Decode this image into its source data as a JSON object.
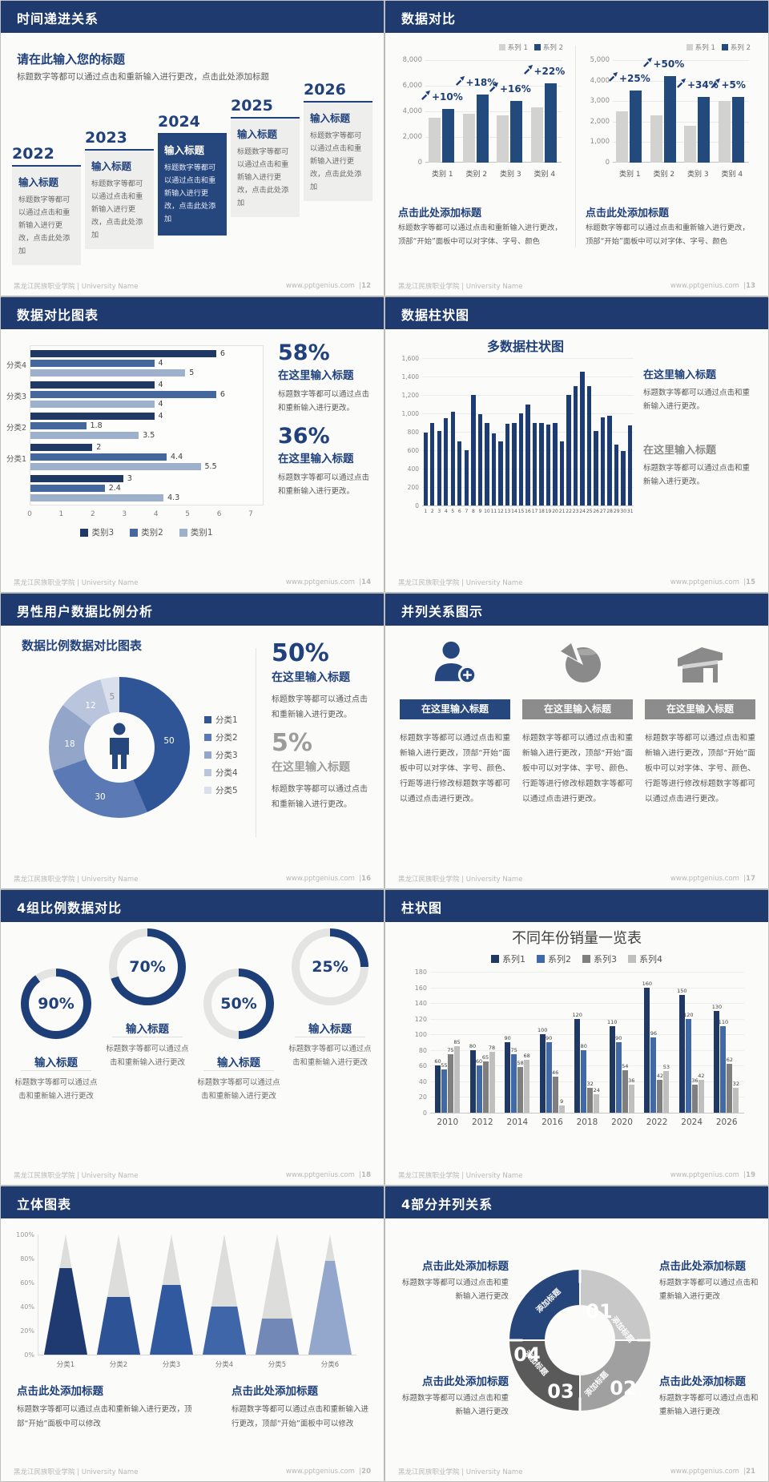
{
  "page": {
    "footer_left": "黑龙江民族职业学院 | University Name",
    "footer_site": "www.pptgenius.com",
    "footer_sep": "|",
    "colors": {
      "header": "#1e3a6e",
      "accent": "#20417c",
      "card_navy": "#26477e",
      "navy_bar": "#234a7d",
      "gray_bar": "#d2d2d0",
      "text_gray": "#595959",
      "muted": "#9c9c9c",
      "ring": "#1e3e78",
      "ring_track": "#e4e4e2"
    }
  },
  "slides": [
    {
      "title": "时间递进关系",
      "page_no": "12",
      "heading": "请在此输入您的标题",
      "subtext": "标题数字等都可以通过点击和重新输入进行更改，点击此处添加标题",
      "items": [
        {
          "year": "2022",
          "card_title": "输入标题",
          "card_text": "标题数字等都可以通过点击和重新输入进行更改，点击此处添加",
          "highlight": false
        },
        {
          "year": "2023",
          "card_title": "输入标题",
          "card_text": "标题数字等都可以通过点击和重新输入进行更改，点击此处添加",
          "highlight": false
        },
        {
          "year": "2024",
          "card_title": "输入标题",
          "card_text": "标题数字等都可以通过点击和重新输入进行更改，点击此处添加",
          "highlight": true
        },
        {
          "year": "2025",
          "card_title": "输入标题",
          "card_text": "标题数字等都可以通过点击和重新输入进行更改，点击此处添加",
          "highlight": false
        },
        {
          "year": "2026",
          "card_title": "输入标题",
          "card_text": "标题数字等都可以通过点击和重新输入进行更改，点击此处添加",
          "highlight": false
        }
      ]
    },
    {
      "title": "数据对比",
      "page_no": "13",
      "captions": [
        {
          "title": "点击此处添加标题",
          "text": "标题数字等都可以通过点击和重新输入进行更改，顶部“开始”面板中可以对字体、字号、颜色"
        },
        {
          "title": "点击此处添加标题",
          "text": "标题数字等都可以通过点击和重新输入进行更改，顶部“开始”面板中可以对字体、字号、颜色"
        }
      ]
    },
    {
      "title": "数据对比图表",
      "page_no": "14",
      "stats": [
        {
          "pct": "58%",
          "title": "在这里输入标题",
          "text": "标题数字等都可以通过点击和重新输入进行更改。",
          "muted": false
        },
        {
          "pct": "36%",
          "title": "在这里输入标题",
          "text": "标题数字等都可以通过点击和重新输入进行更改。",
          "muted": false
        }
      ]
    },
    {
      "title": "数据柱状图",
      "page_no": "15",
      "notes": [
        {
          "title": "在这里输入标题",
          "text": "标题数字等都可以通过点击和重新输入进行更改。",
          "muted": false
        },
        {
          "title": "在这里输入标题",
          "text": "标题数字等都可以通过点击和重新输入进行更改。",
          "muted": true
        }
      ]
    },
    {
      "title": "男性用户数据比例分析",
      "page_no": "16",
      "stats": [
        {
          "pct": "50%",
          "title": "在这里输入标题",
          "text": "标题数字等都可以通过点击和重新输入进行更改。",
          "muted": false
        },
        {
          "pct": "5%",
          "title": "在这里输入标题",
          "text": "标题数字等都可以通过点击和重新输入进行更改。",
          "muted": true
        }
      ]
    },
    {
      "title": "并列关系图示",
      "page_no": "17",
      "columns": [
        {
          "icon": "person-plus-icon",
          "header": "在这里输入标题",
          "accent": true,
          "text": "标题数字等都可以通过点击和重新输入进行更改，顶部“开始”面板中可以对字体、字号、颜色、行距等进行修改标题数字等都可以通过点击进行更改。"
        },
        {
          "icon": "pie-3d-icon",
          "header": "在这里输入标题",
          "accent": false,
          "text": "标题数字等都可以通过点击和重新输入进行更改，顶部“开始”面板中可以对字体、字号、颜色、行距等进行修改标题数字等都可以通过点击进行更改。"
        },
        {
          "icon": "store-icon",
          "header": "在这里输入标题",
          "accent": false,
          "text": "标题数字等都可以通过点击和重新输入进行更改，顶部“开始”面板中可以对字体、字号、颜色、行距等进行修改标题数字等都可以通过点击进行更改。"
        }
      ]
    },
    {
      "title": "4组比例数据对比",
      "page_no": "18",
      "rings": [
        {
          "label": "90%",
          "title": "输入标题",
          "text": "标题数字等都可以通过点击和重新输入进行更改",
          "raised": false
        },
        {
          "label": "70%",
          "title": "输入标题",
          "text": "标题数字等都可以通过点击和重新输入进行更改",
          "raised": true
        },
        {
          "label": "50%",
          "title": "输入标题",
          "text": "标题数字等都可以通过点击和重新输入进行更改",
          "raised": false
        },
        {
          "label": "25%",
          "title": "输入标题",
          "text": "标题数字等都可以通过点击和重新输入进行更改",
          "raised": true
        }
      ]
    },
    {
      "title": "柱状图",
      "page_no": "19"
    },
    {
      "title": "立体图表",
      "page_no": "20",
      "notes": [
        {
          "title": "点击此处添加标题",
          "text": "标题数字等都可以通过点击和重新输入进行更改，顶部“开始”面板中可以修改"
        },
        {
          "title": "点击此处添加标题",
          "text": "标题数字等都可以通过点击和重新输入进行更改，顶部“开始”面板中可以修改"
        }
      ]
    },
    {
      "title": "4部分并列关系",
      "page_no": "21",
      "notes": [
        {
          "title": "点击此处添加标题",
          "text": "标题数字等都可以通过点击和重新输入进行更改"
        },
        {
          "title": "点击此处添加标题",
          "text": "标题数字等都可以通过点击和重新输入进行更改"
        },
        {
          "title": "点击此处添加标题",
          "text": "标题数字等都可以通过点击和重新输入进行更改"
        },
        {
          "title": "点击此处添加标题",
          "text": "标题数字等都可以通过点击和重新输入进行更改"
        }
      ]
    }
  ],
  "chart_data": [
    {
      "type": "bar",
      "title": "",
      "categories": [
        "类别 1",
        "类别 2",
        "类别 3",
        "类别 4"
      ],
      "legend": [
        "系列 1",
        "系列 2"
      ],
      "series": [
        {
          "name": "系列 1",
          "values": [
            3500,
            3800,
            3700,
            4300
          ]
        },
        {
          "name": "系列 2",
          "values": [
            4200,
            5300,
            4800,
            6200
          ]
        }
      ],
      "annotations": [
        "+10%",
        "+18%",
        "+16%",
        "+22%"
      ],
      "colors": [
        "#d2d2d0",
        "#234a7d"
      ],
      "ymax": 8000,
      "y_ticks": [
        "8,000",
        "6,000",
        "4,000",
        "2,000",
        "0"
      ]
    },
    {
      "type": "bar",
      "title": "",
      "categories": [
        "类别 1",
        "类别 2",
        "类别 3",
        "类别 4"
      ],
      "legend": [
        "系列 1",
        "系列 2"
      ],
      "series": [
        {
          "name": "系列 1",
          "values": [
            2500,
            2300,
            1800,
            3000
          ]
        },
        {
          "name": "系列 2",
          "values": [
            3500,
            4200,
            3200,
            3200
          ]
        }
      ],
      "annotations": [
        "+25%",
        "+50%",
        "+34%",
        "+5%"
      ],
      "colors": [
        "#d2d2d0",
        "#234a7d"
      ],
      "ymax": 5000,
      "y_ticks": [
        "5,000",
        "4,000",
        "3,000",
        "2,000",
        "1,000",
        "0"
      ]
    },
    {
      "type": "bar",
      "orientation": "horizontal",
      "title": "",
      "legend": [
        "类别3",
        "类别2",
        "类别1"
      ],
      "colors": [
        "#1f3864",
        "#44679e",
        "#9db0cc"
      ],
      "groups": [
        {
          "label": "分类4",
          "values": [
            6,
            4,
            5
          ]
        },
        {
          "label": "分类3",
          "values": [
            4,
            6,
            4
          ]
        },
        {
          "label": "分类2",
          "values": [
            4,
            1.8,
            3.5
          ]
        },
        {
          "label": "分类1",
          "values": [
            2,
            4.4,
            5.5
          ]
        },
        {
          "label": "",
          "values": [
            3,
            2.4,
            4.3
          ]
        }
      ],
      "xmax": 7,
      "x_ticks": [
        "0",
        "1",
        "2",
        "3",
        "4",
        "5",
        "6",
        "7"
      ]
    },
    {
      "type": "bar",
      "title": "多数据柱状图",
      "x": [
        "1",
        "2",
        "3",
        "4",
        "5",
        "6",
        "7",
        "8",
        "9",
        "10",
        "11",
        "12",
        "13",
        "14",
        "15",
        "16",
        "17",
        "18",
        "19",
        "20",
        "21",
        "22",
        "23",
        "24",
        "25",
        "26",
        "27",
        "28",
        "29",
        "30",
        "31"
      ],
      "values": [
        790,
        900,
        810,
        950,
        1020,
        700,
        600,
        1200,
        990,
        900,
        780,
        700,
        890,
        900,
        1000,
        1100,
        900,
        900,
        880,
        900,
        700,
        1200,
        1300,
        1450,
        1300,
        810,
        960,
        970,
        660,
        590,
        870
      ],
      "color": "#1e3c74",
      "ymax": 1600,
      "y_ticks": [
        "1,600",
        "1,400",
        "1,200",
        "1,000",
        "800",
        "600",
        "400",
        "200",
        "0"
      ]
    },
    {
      "type": "pie",
      "title": "数据比例数据对比图表",
      "labels": [
        "分类1",
        "分类2",
        "分类3",
        "分类4",
        "分类5"
      ],
      "values": [
        50,
        30,
        18,
        12,
        5
      ],
      "colors": [
        "#2f5597",
        "#5b7ab5",
        "#93a5c9",
        "#b9c4dd",
        "#dadfec"
      ]
    },
    {
      "type": "donut-progress",
      "values": [
        90,
        70,
        50,
        25
      ],
      "labels": [
        "90%",
        "70%",
        "50%",
        "25%"
      ]
    },
    {
      "type": "bar",
      "title": "不同年份销量一览表",
      "categories": [
        "2010",
        "2012",
        "2014",
        "2016",
        "2018",
        "2020",
        "2022",
        "2024",
        "2026"
      ],
      "legend": [
        "系列1",
        "系列2",
        "系列3",
        "系列4"
      ],
      "colors": [
        "#1f3864",
        "#4169a8",
        "#7f7f7f",
        "#bfbfbf"
      ],
      "series": [
        {
          "name": "系列1",
          "values": [
            60,
            80,
            90,
            100,
            120,
            110,
            160,
            150,
            130
          ]
        },
        {
          "name": "系列2",
          "values": [
            55,
            60,
            75,
            90,
            80,
            90,
            96,
            120,
            110
          ]
        },
        {
          "name": "系列3",
          "values": [
            75,
            65,
            58,
            46,
            32,
            54,
            42,
            36,
            62
          ]
        },
        {
          "name": "系列4",
          "values": [
            85,
            78,
            68,
            9,
            24,
            36,
            53,
            42,
            32
          ]
        }
      ],
      "ymax": 180,
      "y_ticks": [
        "180",
        "160",
        "140",
        "120",
        "100",
        "80",
        "60",
        "40",
        "20",
        "0"
      ]
    },
    {
      "type": "bar",
      "subtype": "pyramid",
      "title": "",
      "categories": [
        "分类1",
        "分类2",
        "分类3",
        "分类4",
        "分类5",
        "分类6"
      ],
      "values": [
        72,
        48,
        58,
        40,
        30,
        78
      ],
      "unit": "%",
      "colors": [
        "#1e3a70",
        "#2d5295",
        "#31599f",
        "#3f66a8",
        "#7289b8",
        "#93a6cc"
      ],
      "y_ticks": [
        "100%",
        "80%",
        "60%",
        "40%",
        "20%",
        "0%"
      ]
    },
    {
      "type": "pie",
      "subtype": "4-part-ring",
      "title": "",
      "labels": [
        "01",
        "02",
        "03",
        "04"
      ],
      "seg_labels": [
        "添加标题",
        "添加标题",
        "添加标题",
        "添加标题"
      ],
      "values": [
        25,
        25,
        25,
        25
      ],
      "colors": [
        "#c8c8c8",
        "#a0a0a0",
        "#5a5a5a",
        "#26457b"
      ]
    }
  ]
}
